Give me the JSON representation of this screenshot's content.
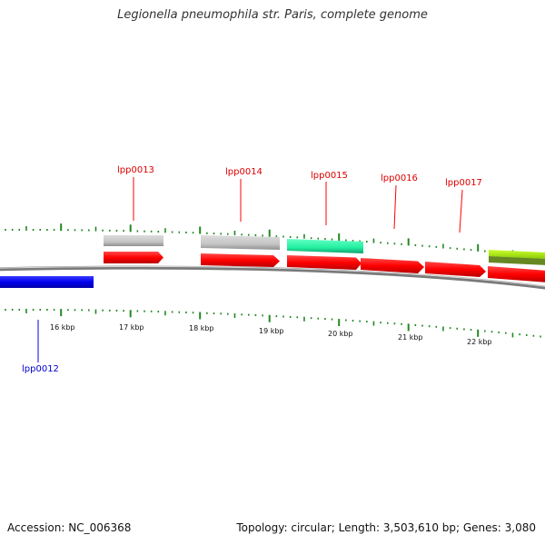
{
  "title": "Legionella pneumophila str. Paris, complete genome",
  "footer": {
    "accession": "Accession: NC_006368",
    "summary": "Topology: circular; Length: 3,503,610 bp; Genes: 3,080"
  },
  "scale_labels": [
    "16 kbp",
    "17 kbp",
    "18 kbp",
    "19 kbp",
    "20 kbp",
    "21 kbp",
    "22 kbp"
  ],
  "genes": [
    {
      "id": "lpp0012",
      "label": "lpp0012",
      "color": "#0000ee",
      "strand": "reverse"
    },
    {
      "id": "lpp0013",
      "label": "lpp0013",
      "color": "#ff0000",
      "strand": "forward"
    },
    {
      "id": "lpp0014",
      "label": "lpp0014",
      "color": "#ff0000",
      "strand": "forward"
    },
    {
      "id": "lpp0015",
      "label": "lpp0015",
      "color": "#ff0000",
      "strand": "forward"
    },
    {
      "id": "lpp0016",
      "label": "lpp0016",
      "color": "#ff0000",
      "strand": "forward"
    },
    {
      "id": "lpp0017",
      "label": "lpp0017",
      "color": "#ff0000",
      "strand": "forward"
    }
  ],
  "colors": {
    "forward_gene": "#ff0000",
    "reverse_gene": "#0000ee",
    "backbone": "#7a7a7a",
    "tick": "#228822",
    "gray_feature": "#c4c4c4",
    "cyan_feature": "#33ffaa",
    "yellowgreen_feature": "#99ee00",
    "olive_feature": "#668822"
  }
}
